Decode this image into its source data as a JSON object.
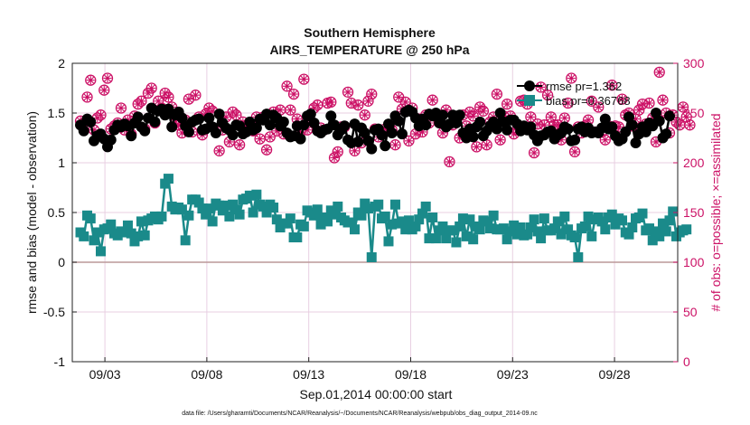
{
  "chart_data": {
    "type": "line",
    "title": "Southern Hemisphere",
    "subtitle": "AIRS_TEMPERATURE @ 250 hPa",
    "xlabel": "Sep.01,2014 00:00:00 start",
    "ylabel_left": "rmse and bias (model - observation)",
    "ylabel_right": "# of obs: o=possible; ×=assimilated",
    "footnote": "data file: /Users/gharamti/Documents/NCAR/Reanalysis/~/Documents/NCAR/Reanalysis/webpub/obs_diag_output_2014-09.nc",
    "xticks": [
      "09/03",
      "09/08",
      "09/13",
      "09/18",
      "09/23",
      "09/28"
    ],
    "xtick_days": [
      3,
      8,
      13,
      18,
      23,
      28
    ],
    "xlim_days": [
      1.4,
      31.1
    ],
    "ylim_left": [
      -1,
      2
    ],
    "yticks_left": [
      "2",
      "1.5",
      "1",
      "0.5",
      "0",
      "-0.5",
      "-1"
    ],
    "ylim_right": [
      0,
      300
    ],
    "yticks_right": [
      "300",
      "250",
      "200",
      "150",
      "100",
      "50",
      "0"
    ],
    "grid": true,
    "legend_position": "top-right",
    "legend": [
      {
        "label": "rmse pr=1.362",
        "color": "#000000"
      },
      {
        "label": "bias pr=0.36768",
        "color": "#1a8a8a"
      }
    ],
    "colors": {
      "rmse": "#000000",
      "bias": "#1a8a8a",
      "obs": "#cc1166",
      "zero_line": "#bb9999"
    },
    "rmse": [
      1.38,
      1.32,
      1.44,
      1.41,
      1.22,
      1.27,
      1.29,
      1.24,
      1.16,
      1.23,
      1.33,
      1.38,
      1.36,
      1.39,
      1.37,
      1.27,
      1.4,
      1.46,
      1.36,
      1.32,
      1.45,
      1.55,
      1.41,
      1.52,
      1.54,
      1.48,
      1.54,
      1.36,
      1.48,
      1.51,
      1.45,
      1.37,
      1.31,
      1.41,
      1.43,
      1.44,
      1.33,
      1.34,
      1.45,
      1.36,
      1.3,
      1.49,
      1.4,
      1.35,
      1.33,
      1.28,
      1.38,
      1.37,
      1.29,
      1.31,
      1.41,
      1.33,
      1.35,
      1.44,
      1.43,
      1.49,
      1.38,
      1.48,
      1.45,
      1.37,
      1.41,
      1.3,
      1.26,
      1.27,
      1.37,
      1.24,
      1.38,
      1.47,
      1.49,
      1.4,
      1.32,
      1.3,
      1.33,
      1.34,
      1.47,
      1.38,
      1.28,
      1.33,
      1.37,
      1.23,
      1.2,
      1.39,
      1.21,
      1.35,
      1.3,
      1.22,
      1.14,
      1.33,
      1.34,
      1.28,
      1.17,
      1.39,
      1.3,
      1.47,
      1.42,
      1.29,
      1.51,
      1.53,
      1.51,
      1.45,
      1.37,
      1.44,
      1.38,
      1.49,
      1.47,
      1.5,
      1.4,
      1.48,
      1.36,
      1.39,
      1.48,
      1.4,
      1.48,
      1.3,
      1.25,
      1.34,
      1.26,
      1.36,
      1.41,
      1.27,
      1.32,
      1.37,
      1.41,
      1.34,
      1.5,
      1.41,
      1.33,
      1.43,
      1.43,
      1.39,
      1.32,
      1.37,
      1.33,
      1.36,
      1.28,
      1.22,
      1.27,
      1.28,
      1.31,
      1.32,
      1.24,
      1.28,
      1.3,
      1.36,
      1.34,
      1.22,
      1.23,
      1.34,
      1.36,
      1.31,
      1.35,
      1.3,
      1.31,
      1.3,
      1.35,
      1.44,
      1.34,
      1.36,
      1.27,
      1.22,
      1.24,
      1.31,
      1.46,
      1.38,
      1.2,
      1.29,
      1.36,
      1.31,
      1.4,
      1.37,
      1.5,
      1.42,
      1.25,
      1.29,
      1.47
    ],
    "bias": [
      0.3,
      0.26,
      0.47,
      0.44,
      0.22,
      0.3,
      0.11,
      0.33,
      0.34,
      0.38,
      0.29,
      0.27,
      0.31,
      0.3,
      0.37,
      0.29,
      0.21,
      0.26,
      0.41,
      0.27,
      0.42,
      0.44,
      0.46,
      0.43,
      0.46,
      0.79,
      0.84,
      0.56,
      0.53,
      0.55,
      0.53,
      0.22,
      0.47,
      0.63,
      0.63,
      0.6,
      0.54,
      0.48,
      0.54,
      0.41,
      0.59,
      0.57,
      0.52,
      0.57,
      0.46,
      0.58,
      0.53,
      0.48,
      0.63,
      0.64,
      0.67,
      0.5,
      0.68,
      0.58,
      0.56,
      0.5,
      0.58,
      0.55,
      0.43,
      0.35,
      0.39,
      0.39,
      0.44,
      0.25,
      0.25,
      0.38,
      0.36,
      0.52,
      0.5,
      0.47,
      0.53,
      0.38,
      0.45,
      0.41,
      0.52,
      0.48,
      0.56,
      0.45,
      0.42,
      0.4,
      0.4,
      0.33,
      0.5,
      0.47,
      0.59,
      0.54,
      0.05,
      0.56,
      0.58,
      0.44,
      0.46,
      0.21,
      0.38,
      0.58,
      0.39,
      0.41,
      0.33,
      0.42,
      0.33,
      0.36,
      0.43,
      0.49,
      0.56,
      0.24,
      0.45,
      0.24,
      0.32,
      0.36,
      0.24,
      0.32,
      0.32,
      0.2,
      0.36,
      0.44,
      0.26,
      0.43,
      0.23,
      0.36,
      0.33,
      0.42,
      0.41,
      0.34,
      0.47,
      0.33,
      0.33,
      0.34,
      0.23,
      0.31,
      0.37,
      0.28,
      0.35,
      0.27,
      0.28,
      0.35,
      0.43,
      0.31,
      0.24,
      0.44,
      0.32,
      0.32,
      0.34,
      0.41,
      0.28,
      0.46,
      0.33,
      0.27,
      0.25,
      0.05,
      0.34,
      0.36,
      0.46,
      0.26,
      0.43,
      0.45,
      0.41,
      0.33,
      0.45,
      0.48,
      0.38,
      0.44,
      0.42,
      0.3,
      0.28,
      0.35,
      0.44,
      0.45,
      0.49,
      0.32,
      0.34,
      0.22,
      0.31,
      0.26,
      0.39,
      0.31,
      0.42,
      0.51,
      0.26,
      0.3,
      0.32,
      0.33
    ],
    "obs_possible": [
      242,
      240,
      266,
      283,
      233,
      245,
      248,
      273,
      285,
      234,
      237,
      240,
      255,
      233,
      243,
      229,
      247,
      259,
      262,
      234,
      270,
      275,
      240,
      262,
      255,
      270,
      266,
      256,
      240,
      238,
      230,
      243,
      264,
      231,
      268,
      246,
      228,
      249,
      255,
      252,
      233,
      212,
      233,
      246,
      221,
      251,
      248,
      218,
      241,
      235,
      240,
      232,
      246,
      224,
      246,
      213,
      226,
      251,
      232,
      253,
      229,
      277,
      253,
      269,
      244,
      231,
      284,
      233,
      242,
      255,
      258,
      235,
      233,
      260,
      261,
      205,
      211,
      236,
      236,
      271,
      260,
      212,
      258,
      220,
      248,
      262,
      269,
      234,
      226,
      231,
      234,
      234,
      233,
      218,
      266,
      254,
      261,
      222,
      255,
      229,
      244,
      231,
      248,
      240,
      263,
      248,
      243,
      230,
      253,
      201,
      238,
      244,
      225,
      248,
      237,
      251,
      247,
      216,
      256,
      252,
      218,
      241,
      246,
      269,
      223,
      247,
      259,
      247,
      229,
      233,
      262,
      263,
      259,
      246,
      210,
      239,
      276,
      238,
      268,
      246,
      238,
      238,
      223,
      245,
      260,
      285,
      211,
      236,
      230,
      237,
      243,
      262,
      231,
      256,
      231,
      223,
      237,
      278,
      237,
      236,
      264,
      248,
      250,
      237,
      244,
      253,
      259,
      239,
      260,
      245,
      221,
      291,
      263,
      250,
      230,
      248,
      241,
      238,
      256,
      246,
      238
    ],
    "obs_assimilated": [
      242,
      240,
      266,
      283,
      233,
      245,
      248,
      273,
      285,
      234,
      237,
      240,
      255,
      233,
      243,
      229,
      247,
      259,
      262,
      234,
      270,
      275,
      240,
      262,
      255,
      270,
      266,
      256,
      240,
      238,
      230,
      243,
      264,
      231,
      268,
      246,
      228,
      249,
      255,
      252,
      233,
      212,
      233,
      246,
      221,
      251,
      248,
      218,
      241,
      235,
      240,
      232,
      246,
      224,
      246,
      213,
      226,
      251,
      232,
      253,
      229,
      277,
      253,
      269,
      244,
      231,
      284,
      233,
      242,
      255,
      258,
      235,
      233,
      260,
      261,
      205,
      211,
      236,
      236,
      271,
      260,
      212,
      258,
      220,
      248,
      262,
      269,
      234,
      226,
      231,
      234,
      234,
      233,
      218,
      266,
      254,
      261,
      222,
      255,
      229,
      244,
      231,
      248,
      240,
      263,
      248,
      243,
      230,
      253,
      201,
      238,
      244,
      225,
      248,
      237,
      251,
      247,
      216,
      256,
      252,
      218,
      241,
      246,
      269,
      223,
      247,
      259,
      247,
      229,
      233,
      262,
      263,
      259,
      246,
      210,
      239,
      276,
      238,
      268,
      246,
      238,
      238,
      223,
      245,
      260,
      285,
      211,
      236,
      230,
      237,
      243,
      262,
      231,
      256,
      231,
      223,
      237,
      278,
      237,
      236,
      264,
      248,
      250,
      237,
      244,
      253,
      259,
      239,
      260,
      245,
      221,
      291,
      263,
      250,
      230,
      248,
      241,
      238,
      256,
      246,
      238
    ]
  }
}
